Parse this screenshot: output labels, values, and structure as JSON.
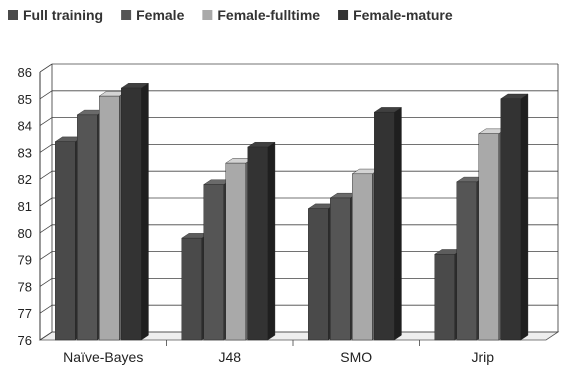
{
  "chart_data": {
    "type": "bar",
    "style": "3d-clustered",
    "categories": [
      "Naïve-Bayes",
      "J48",
      "SMO",
      "Jrip"
    ],
    "series": [
      {
        "name": "Full training",
        "color": "#4a4a4a",
        "values": [
          83.4,
          79.8,
          80.9,
          79.2
        ]
      },
      {
        "name": "Female",
        "color": "#555555",
        "values": [
          84.4,
          81.8,
          81.3,
          81.9
        ]
      },
      {
        "name": "Female-fulltime",
        "color": "#a9a9a9",
        "values": [
          85.1,
          82.6,
          82.2,
          83.7
        ]
      },
      {
        "name": "Female-mature",
        "color": "#333333",
        "values": [
          85.4,
          83.2,
          84.5,
          85.0
        ]
      }
    ],
    "ylim": [
      76,
      86
    ],
    "yticks": [
      76,
      77,
      78,
      79,
      80,
      81,
      82,
      83,
      84,
      85,
      86
    ],
    "grid": true,
    "legend_position": "top"
  }
}
